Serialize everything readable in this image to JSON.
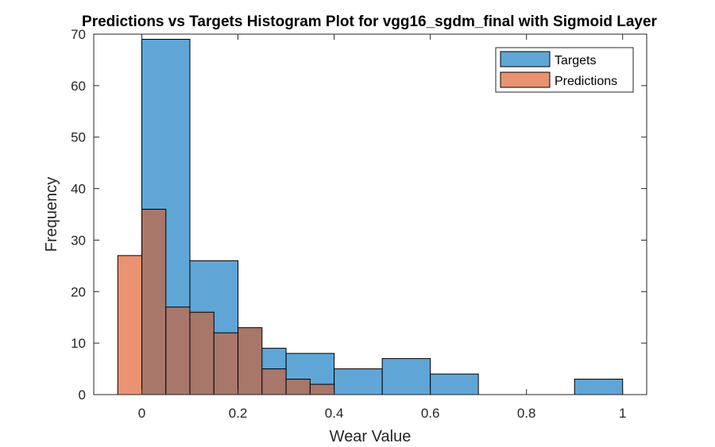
{
  "chart_data": {
    "type": "bar",
    "title": "Predictions vs Targets Histogram Plot for vgg16_sgdm_final with Sigmoid Layer",
    "xlabel": "Wear Value",
    "ylabel": "Frequency",
    "xlim": [
      -0.1,
      1.05
    ],
    "ylim": [
      0,
      70
    ],
    "xticks": [
      0,
      0.2,
      0.4,
      0.6,
      0.8,
      1
    ],
    "xtick_labels": [
      "0",
      "0.2",
      "0.4",
      "0.6",
      "0.8",
      "1"
    ],
    "yticks": [
      0,
      10,
      20,
      30,
      40,
      50,
      60,
      70
    ],
    "ytick_labels": [
      "0",
      "10",
      "20",
      "30",
      "40",
      "50",
      "60",
      "70"
    ],
    "legend_position": "top-right",
    "grid": false,
    "series": [
      {
        "name": "Targets",
        "color": "#5FA6D7",
        "bin_edges": [
          0,
          0.1,
          0.2,
          0.3,
          0.4,
          0.5,
          0.6,
          0.7,
          0.8,
          0.9,
          1.0
        ],
        "counts": [
          69,
          26,
          9,
          8,
          5,
          7,
          4,
          0,
          0,
          3
        ]
      },
      {
        "name": "Predictions",
        "color": "#EA9373",
        "bin_edges": [
          -0.05,
          0,
          0.05,
          0.1,
          0.15,
          0.2,
          0.25,
          0.3,
          0.35,
          0.4
        ],
        "counts": [
          27,
          36,
          17,
          16,
          12,
          13,
          5,
          3,
          2
        ]
      }
    ],
    "overlap_color": "#A8776A"
  }
}
